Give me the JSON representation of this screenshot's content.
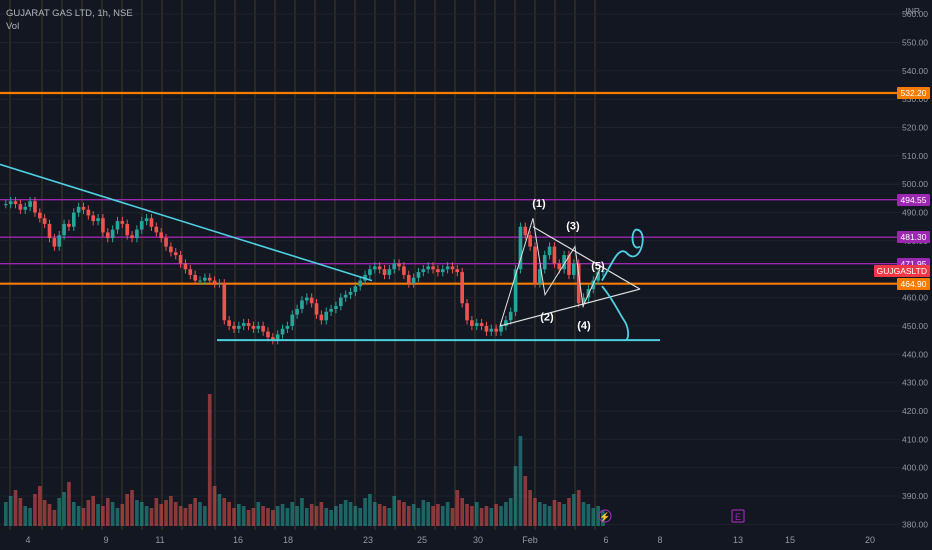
{
  "header": {
    "symbol_line": "GUJARAT GAS LTD, 1h, NSE",
    "volume_label": "Vol"
  },
  "axis": {
    "currency": "INR"
  },
  "price_tags": [
    {
      "label": "532.20",
      "price": 532.2,
      "color": "#f57c00"
    },
    {
      "label": "494.55",
      "price": 494.55,
      "color": "#9c27b0"
    },
    {
      "label": "481.30",
      "price": 481.3,
      "color": "#9c27b0"
    },
    {
      "label": "471.95",
      "price": 471.95,
      "color": "#9c27b0"
    },
    {
      "label": "GUJGASLTD",
      "price": 469.45,
      "color": "#f23645"
    },
    {
      "label": "464.90",
      "price": 464.9,
      "color": "#f57c00"
    }
  ],
  "wave_labels": [
    "(1)",
    "(2)",
    "(3)",
    "(4)",
    "(5)"
  ],
  "event_icons": [
    "⚡",
    "E"
  ],
  "colors": {
    "background": "#131722",
    "up": "#26a69a",
    "down": "#ef5350",
    "orange_line": "#f57c00",
    "purple_line": "#9c27b0",
    "cyan_drawing": "#4dd0e1",
    "session_line": "#6b5a22"
  },
  "chart_data": {
    "type": "candlestick",
    "y_axis": {
      "ticks": [
        380,
        390,
        400,
        410,
        420,
        430,
        440,
        450,
        460,
        470,
        480,
        490,
        500,
        510,
        520,
        530,
        540,
        550,
        560
      ],
      "tick_labels": [
        "380.00",
        "390.00",
        "400.00",
        "410.00",
        "420.00",
        "430.00",
        "440.00",
        "450.00",
        "460.00",
        "470.00",
        "480.00",
        "490.00",
        "500.00",
        "510.00",
        "520.00",
        "530.00",
        "540.00",
        "550.00",
        "560.00"
      ],
      "range": [
        378,
        565
      ]
    },
    "x_axis": {
      "tick_labels": [
        "4",
        "9",
        "11",
        "16",
        "18",
        "23",
        "25",
        "30",
        "Feb",
        "6",
        "8",
        "13",
        "15",
        "20"
      ]
    },
    "horizontal_levels": [
      {
        "price": 532.2,
        "color": "orange"
      },
      {
        "price": 494.55,
        "color": "purple"
      },
      {
        "price": 481.3,
        "color": "purple"
      },
      {
        "price": 471.95,
        "color": "purple"
      },
      {
        "price": 464.9,
        "color": "orange"
      }
    ],
    "support_line": 445,
    "price_series": [
      493,
      494,
      493,
      491,
      492,
      494,
      490,
      488,
      486,
      481,
      478,
      482,
      486,
      485,
      490,
      492,
      491,
      489,
      487,
      488,
      483,
      481,
      484,
      487,
      486,
      482,
      481,
      484,
      487,
      488,
      485,
      483,
      481,
      478,
      476,
      475,
      472,
      470,
      468,
      466,
      466,
      467,
      466,
      465,
      465,
      452,
      450,
      449,
      450,
      451,
      450,
      449,
      450,
      448,
      446,
      445,
      447,
      449,
      450,
      454,
      456,
      459,
      460,
      458,
      454,
      452,
      455,
      456,
      457,
      460,
      461,
      462,
      464,
      466,
      468,
      470,
      471,
      470,
      468,
      470,
      472,
      471,
      468,
      465,
      467,
      469,
      470,
      471,
      470,
      469,
      470,
      471,
      470,
      469,
      458,
      452,
      450,
      451,
      450,
      448,
      449,
      448,
      450,
      452,
      455,
      470,
      485,
      482,
      478,
      465,
      470,
      475,
      478,
      472,
      470,
      475,
      468,
      472,
      458,
      460,
      463,
      466,
      469,
      469.45
    ],
    "volume_series": [
      12,
      15,
      18,
      14,
      10,
      9,
      16,
      20,
      13,
      11,
      8,
      14,
      17,
      22,
      12,
      10,
      9,
      13,
      15,
      11,
      10,
      14,
      12,
      9,
      11,
      16,
      18,
      13,
      12,
      10,
      9,
      14,
      11,
      13,
      15,
      12,
      10,
      9,
      11,
      14,
      12,
      10,
      66,
      20,
      16,
      14,
      12,
      9,
      11,
      10,
      8,
      9,
      12,
      10,
      9,
      8,
      10,
      11,
      9,
      12,
      10,
      14,
      9,
      11,
      10,
      12,
      9,
      8,
      10,
      11,
      13,
      12,
      10,
      9,
      14,
      16,
      12,
      11,
      10,
      9,
      15,
      13,
      12,
      10,
      11,
      9,
      13,
      12,
      10,
      11,
      10,
      12,
      9,
      18,
      14,
      11,
      10,
      12,
      9,
      10,
      9,
      11,
      10,
      12,
      14,
      30,
      45,
      25,
      18,
      14,
      12,
      11,
      10,
      13,
      12,
      11,
      14,
      16,
      18,
      12,
      11,
      9,
      10,
      8
    ]
  }
}
